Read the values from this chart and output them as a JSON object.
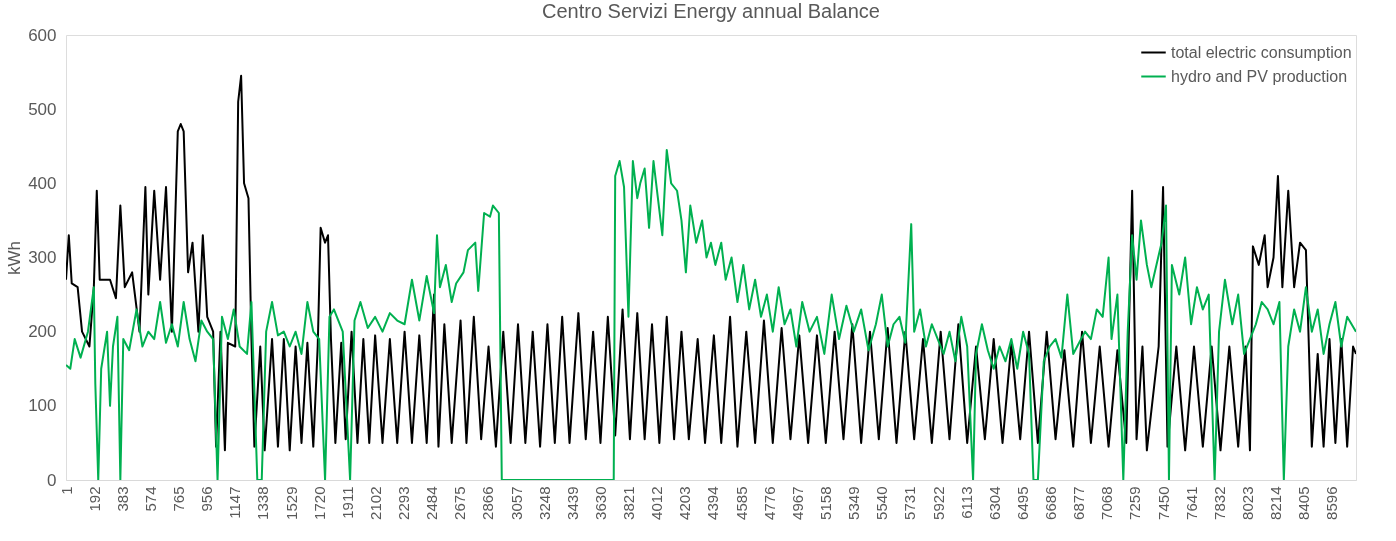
{
  "chart_data": {
    "type": "line",
    "title": "Centro Servizi Energy annual Balance",
    "ylabel": "kWh",
    "xlim": [
      1,
      8760
    ],
    "xticks": [
      1,
      192,
      383,
      574,
      765,
      956,
      1147,
      1338,
      1529,
      1720,
      1911,
      2102,
      2293,
      2484,
      2675,
      2866,
      3057,
      3248,
      3439,
      3630,
      3821,
      4012,
      4203,
      4394,
      4585,
      4776,
      4967,
      5158,
      5349,
      5540,
      5731,
      5922,
      6113,
      6304,
      6495,
      6686,
      6877,
      7068,
      7259,
      7450,
      7641,
      7832,
      8023,
      8214,
      8405,
      8596
    ],
    "ylim": [
      0,
      600
    ],
    "yticks": [
      0,
      100,
      200,
      300,
      400,
      500,
      600
    ],
    "grid": false,
    "legend": "top right",
    "line_style": "solid",
    "marker": "none",
    "series": [
      {
        "name": "total electric consumption",
        "color": "#000000",
        "x": [
          1,
          20,
          40,
          80,
          110,
          160,
          190,
          210,
          230,
          300,
          340,
          370,
          400,
          450,
          500,
          540,
          560,
          600,
          640,
          680,
          720,
          760,
          780,
          800,
          830,
          860,
          900,
          930,
          960,
          1000,
          1020,
          1050,
          1080,
          1100,
          1150,
          1170,
          1190,
          1210,
          1240,
          1260,
          1280,
          1320,
          1350,
          1400,
          1440,
          1480,
          1520,
          1560,
          1600,
          1640,
          1680,
          1710,
          1730,
          1760,
          1780,
          1800,
          1830,
          1870,
          1900,
          1940,
          1980,
          2020,
          2060,
          2100,
          2150,
          2200,
          2250,
          2300,
          2350,
          2400,
          2450,
          2500,
          2530,
          2570,
          2620,
          2680,
          2720,
          2770,
          2820,
          2870,
          2920,
          2970,
          3020,
          3070,
          3120,
          3170,
          3220,
          3270,
          3320,
          3370,
          3420,
          3480,
          3530,
          3580,
          3630,
          3680,
          3730,
          3780,
          3830,
          3880,
          3930,
          3980,
          4030,
          4080,
          4130,
          4180,
          4230,
          4290,
          4340,
          4400,
          4450,
          4510,
          4560,
          4620,
          4680,
          4740,
          4800,
          4860,
          4920,
          4980,
          5040,
          5100,
          5160,
          5220,
          5280,
          5340,
          5400,
          5460,
          5520,
          5580,
          5640,
          5700,
          5760,
          5820,
          5880,
          5940,
          6000,
          6060,
          6120,
          6180,
          6240,
          6300,
          6360,
          6420,
          6480,
          6540,
          6600,
          6660,
          6720,
          6780,
          6840,
          6900,
          6960,
          7020,
          7080,
          7140,
          7200,
          7240,
          7270,
          7310,
          7340,
          7420,
          7450,
          7480,
          7540,
          7600,
          7660,
          7720,
          7780,
          7840,
          7900,
          7960,
          8010,
          8040,
          8060,
          8100,
          8140,
          8160,
          8200,
          8230,
          8260,
          8300,
          8340,
          8380,
          8420,
          8440,
          8460,
          8500,
          8540,
          8580,
          8620,
          8660,
          8700,
          8740,
          8760
        ],
        "values": [
          270,
          330,
          265,
          260,
          200,
          180,
          260,
          390,
          270,
          270,
          245,
          370,
          260,
          280,
          200,
          395,
          250,
          390,
          270,
          395,
          200,
          470,
          480,
          470,
          280,
          320,
          200,
          330,
          220,
          200,
          45,
          200,
          40,
          185,
          180,
          510,
          545,
          400,
          380,
          190,
          45,
          180,
          40,
          190,
          45,
          190,
          40,
          180,
          50,
          185,
          45,
          180,
          340,
          320,
          330,
          190,
          50,
          185,
          55,
          200,
          50,
          190,
          50,
          195,
          50,
          190,
          50,
          200,
          50,
          195,
          50,
          250,
          45,
          210,
          50,
          215,
          50,
          220,
          55,
          180,
          45,
          200,
          50,
          210,
          50,
          200,
          45,
          210,
          50,
          220,
          50,
          225,
          55,
          200,
          50,
          220,
          60,
          230,
          55,
          225,
          55,
          210,
          50,
          220,
          55,
          200,
          55,
          190,
          50,
          195,
          50,
          220,
          45,
          200,
          50,
          215,
          50,
          205,
          55,
          195,
          50,
          195,
          50,
          200,
          55,
          210,
          50,
          200,
          55,
          205,
          50,
          200,
          55,
          190,
          50,
          200,
          55,
          210,
          50,
          180,
          55,
          190,
          50,
          185,
          55,
          200,
          50,
          200,
          55,
          175,
          45,
          200,
          50,
          180,
          45,
          175,
          50,
          390,
          55,
          180,
          40,
          180,
          395,
          45,
          180,
          40,
          180,
          45,
          180,
          40,
          180,
          45,
          180,
          40,
          315,
          290,
          330,
          260,
          300,
          410,
          260,
          390,
          260,
          320,
          310,
          180,
          45,
          170,
          45,
          190,
          50,
          190,
          45,
          180,
          170
        ]
      },
      {
        "name": "hydro and PV production",
        "color": "#00b050",
        "x": [
          1,
          30,
          60,
          100,
          150,
          190,
          200,
          220,
          240,
          280,
          300,
          320,
          350,
          370,
          390,
          430,
          480,
          520,
          560,
          600,
          640,
          680,
          720,
          760,
          800,
          840,
          880,
          920,
          960,
          1000,
          1030,
          1060,
          1100,
          1140,
          1180,
          1230,
          1260,
          1300,
          1330,
          1360,
          1400,
          1440,
          1480,
          1520,
          1560,
          1600,
          1640,
          1680,
          1720,
          1760,
          1790,
          1820,
          1880,
          1930,
          1960,
          2000,
          2050,
          2100,
          2150,
          2200,
          2250,
          2300,
          2350,
          2400,
          2450,
          2500,
          2520,
          2540,
          2580,
          2620,
          2650,
          2700,
          2730,
          2780,
          2800,
          2840,
          2880,
          2900,
          2940,
          2960,
          3000,
          3720,
          3730,
          3760,
          3790,
          3820,
          3850,
          3880,
          3900,
          3930,
          3960,
          3990,
          4020,
          4050,
          4080,
          4110,
          4150,
          4180,
          4210,
          4240,
          4280,
          4320,
          4350,
          4380,
          4410,
          4450,
          4480,
          4520,
          4560,
          4600,
          4640,
          4680,
          4720,
          4760,
          4800,
          4840,
          4880,
          4920,
          4960,
          5000,
          5050,
          5100,
          5150,
          5200,
          5250,
          5300,
          5350,
          5400,
          5450,
          5500,
          5540,
          5580,
          5620,
          5660,
          5700,
          5740,
          5760,
          5800,
          5840,
          5880,
          5920,
          5960,
          6000,
          6040,
          6080,
          6120,
          6160,
          6180,
          6220,
          6260,
          6300,
          6340,
          6380,
          6420,
          6460,
          6500,
          6540,
          6570,
          6600,
          6640,
          6680,
          6720,
          6760,
          6800,
          6840,
          6880,
          6920,
          6960,
          7000,
          7040,
          7080,
          7100,
          7140,
          7180,
          7210,
          7240,
          7270,
          7300,
          7340,
          7370,
          7440,
          7470,
          7490,
          7510,
          7560,
          7600,
          7640,
          7680,
          7720,
          7760,
          7800,
          7830,
          7870,
          7920,
          7960,
          8000,
          8040,
          8080,
          8120,
          8160,
          8200,
          8240,
          8270,
          8300,
          8340,
          8380,
          8420,
          8460,
          8500,
          8540,
          8580,
          8620,
          8660,
          8700,
          8760
        ],
        "values": [
          155,
          150,
          190,
          165,
          200,
          260,
          130,
          0,
          150,
          200,
          100,
          180,
          220,
          0,
          190,
          175,
          230,
          180,
          200,
          190,
          240,
          185,
          210,
          180,
          240,
          190,
          160,
          215,
          200,
          190,
          0,
          220,
          190,
          230,
          180,
          170,
          240,
          0,
          0,
          200,
          240,
          195,
          200,
          180,
          200,
          170,
          240,
          200,
          190,
          0,
          220,
          230,
          200,
          0,
          215,
          240,
          205,
          220,
          200,
          225,
          215,
          210,
          270,
          215,
          275,
          225,
          330,
          260,
          290,
          240,
          265,
          280,
          310,
          320,
          255,
          360,
          355,
          370,
          360,
          0,
          0,
          0,
          410,
          430,
          395,
          220,
          430,
          380,
          400,
          420,
          340,
          430,
          380,
          330,
          445,
          400,
          390,
          350,
          280,
          370,
          320,
          350,
          300,
          320,
          290,
          320,
          270,
          300,
          240,
          290,
          230,
          270,
          220,
          250,
          200,
          260,
          210,
          230,
          180,
          240,
          200,
          220,
          170,
          250,
          190,
          235,
          200,
          230,
          175,
          210,
          250,
          180,
          210,
          220,
          185,
          345,
          200,
          230,
          180,
          210,
          190,
          170,
          200,
          160,
          220,
          180,
          0,
          170,
          210,
          175,
          150,
          180,
          160,
          190,
          150,
          200,
          170,
          0,
          0,
          160,
          180,
          190,
          165,
          250,
          170,
          185,
          200,
          190,
          230,
          220,
          300,
          190,
          250,
          0,
          200,
          330,
          270,
          350,
          290,
          260,
          320,
          370,
          0,
          290,
          250,
          300,
          210,
          260,
          230,
          250,
          0,
          200,
          270,
          210,
          250,
          170,
          190,
          210,
          240,
          230,
          210,
          240,
          0,
          180,
          230,
          200,
          260,
          200,
          230,
          170,
          210,
          240,
          180,
          220,
          200
        ]
      }
    ]
  }
}
